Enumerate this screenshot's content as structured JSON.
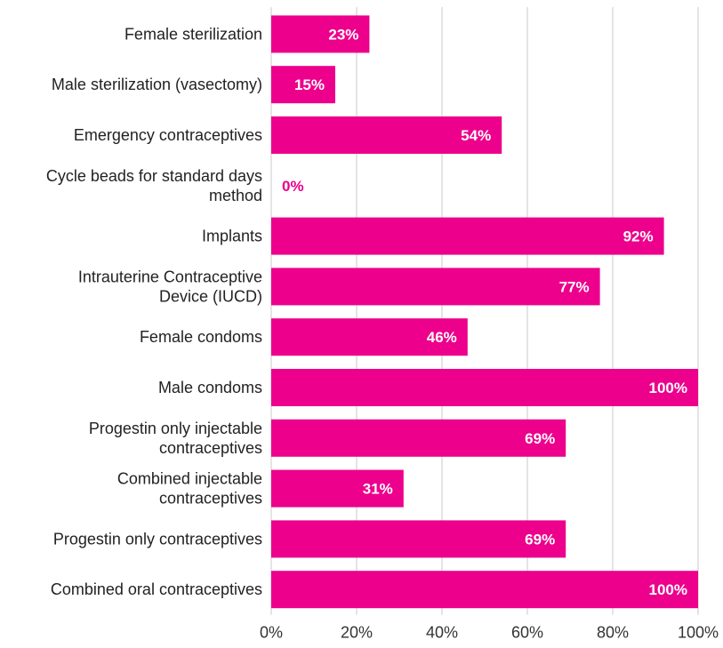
{
  "chart_data": {
    "type": "bar",
    "orientation": "horizontal",
    "title": "",
    "xlabel": "",
    "ylabel": "",
    "xlim": [
      0,
      100
    ],
    "grid": true,
    "bar_color": "#EC008C",
    "label_color_inside": "#ffffff",
    "label_color_outside": "#EC008C",
    "x_ticks": [
      "0%",
      "20%",
      "40%",
      "60%",
      "80%",
      "100%"
    ],
    "x_tick_values": [
      0,
      20,
      40,
      60,
      80,
      100
    ],
    "categories": [
      "Female sterilization",
      "Male sterilization (vasectomy)",
      "Emergency contraceptives",
      "Cycle beads for standard days method",
      "Implants",
      "Intrauterine Contraceptive Device (IUCD)",
      "Female condoms",
      "Male condoms",
      "Progestin only injectable contraceptives",
      "Combined injectable contraceptives",
      "Progestin only contraceptives",
      "Combined oral contraceptives"
    ],
    "category_lines": [
      [
        "Female sterilization"
      ],
      [
        "Male sterilization (vasectomy)"
      ],
      [
        "Emergency contraceptives"
      ],
      [
        "Cycle beads for standard days",
        "method"
      ],
      [
        "Implants"
      ],
      [
        "Intrauterine Contraceptive",
        "Device (IUCD)"
      ],
      [
        "Female condoms"
      ],
      [
        "Male condoms"
      ],
      [
        "Progestin only injectable",
        "contraceptives"
      ],
      [
        "Combined injectable",
        "contraceptives"
      ],
      [
        "Progestin only contraceptives"
      ],
      [
        "Combined oral contraceptives"
      ]
    ],
    "values": [
      23,
      15,
      54,
      0,
      92,
      77,
      46,
      100,
      69,
      31,
      69,
      100
    ],
    "value_labels": [
      "23%",
      "15%",
      "54%",
      "0%",
      "92%",
      "77%",
      "46%",
      "100%",
      "69%",
      "31%",
      "69%",
      "100%"
    ]
  }
}
